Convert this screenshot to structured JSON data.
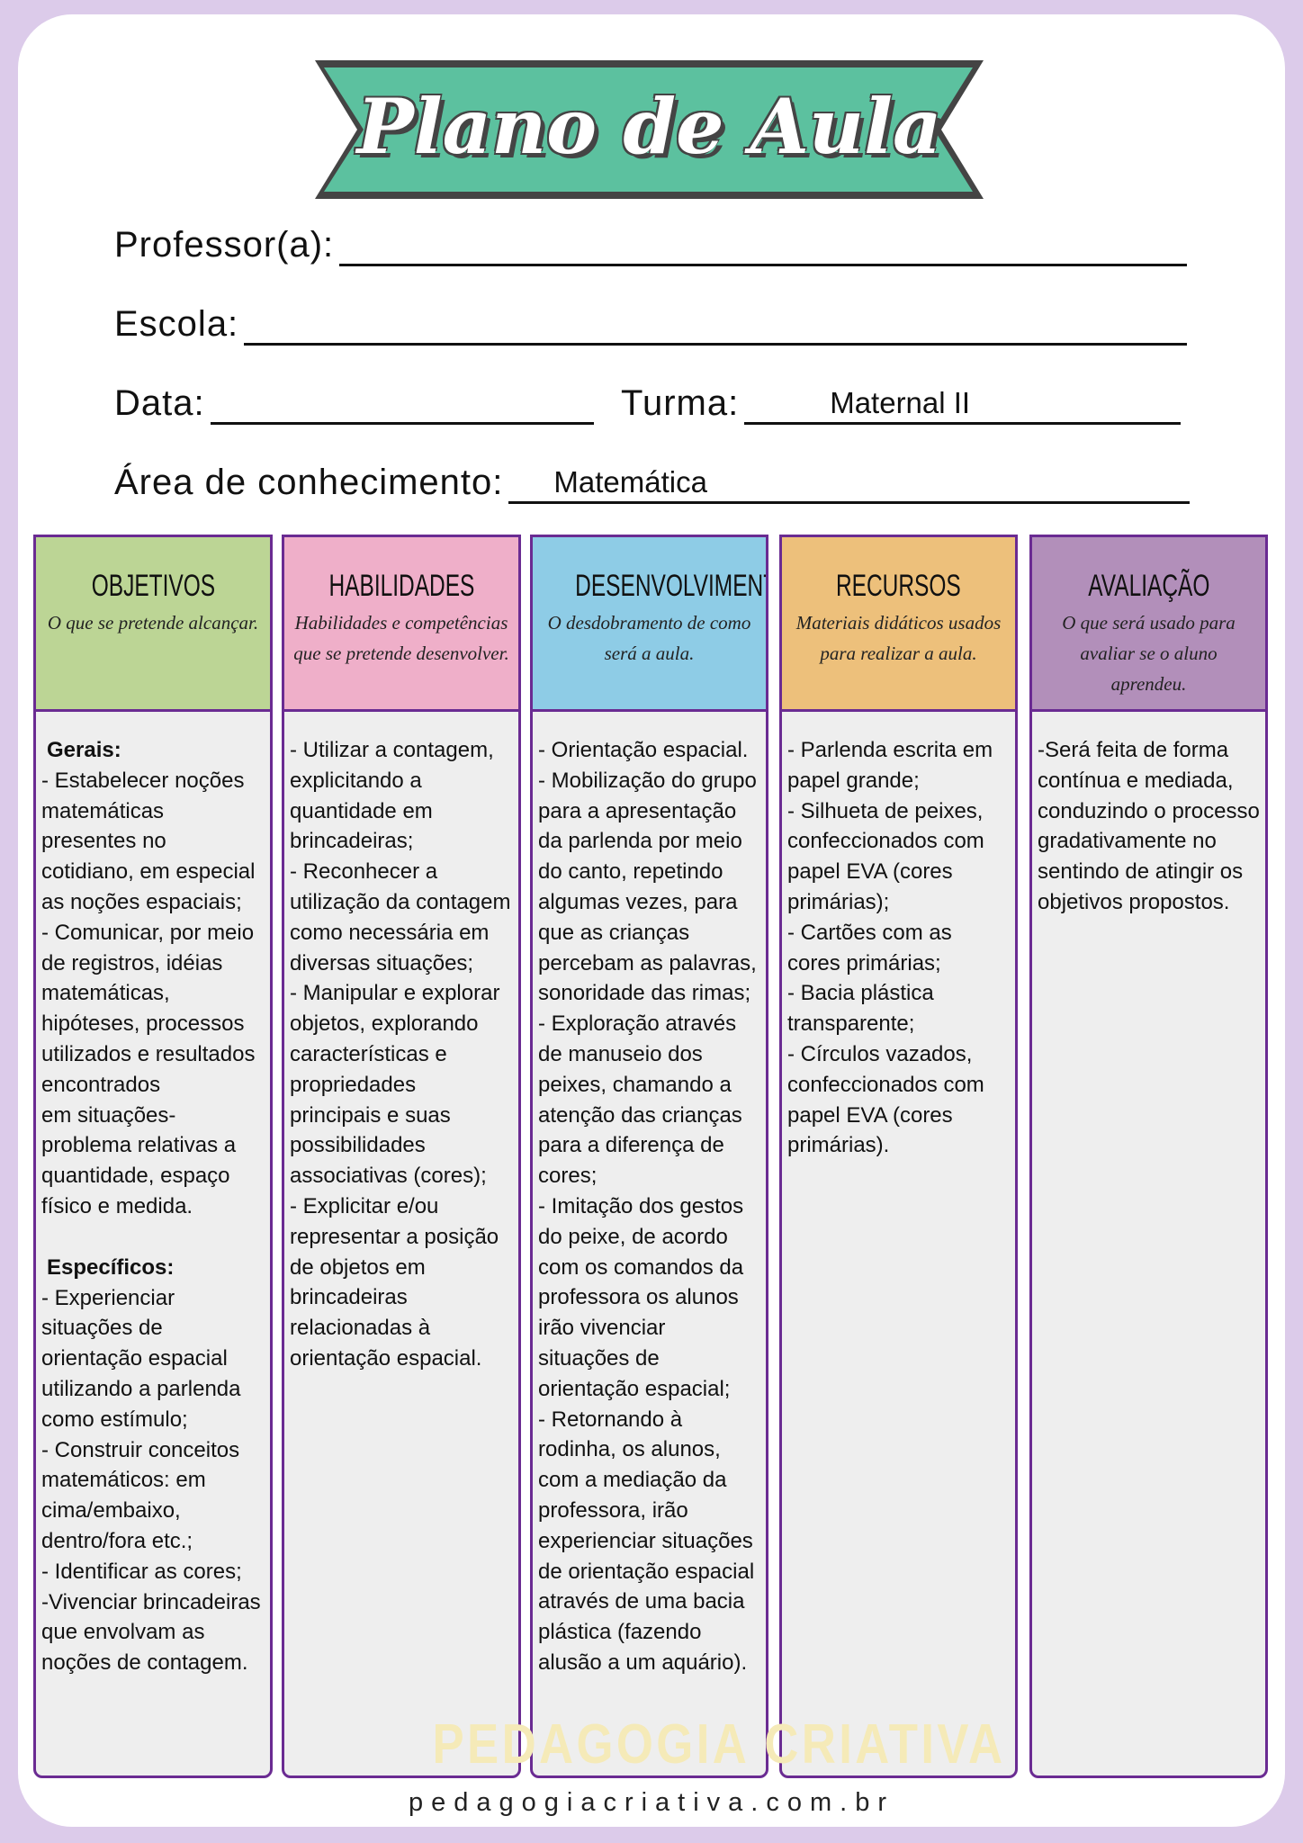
{
  "title": "Plano de Aula",
  "fields": {
    "professor_label": "Professor(a):",
    "professor_value": "",
    "escola_label": "Escola:",
    "escola_value": "",
    "data_label": "Data:",
    "data_value": "",
    "turma_label": "Turma:",
    "turma_value": "Maternal II",
    "area_label": "Área de conhecimento:",
    "area_value": "Matemática"
  },
  "columns": [
    {
      "title": "OBJETIVOS",
      "subtitle": "O que se pretende alcançar.",
      "color": "#bcd595",
      "heading1": "Gerais:",
      "text1": "- Estabelecer noções matemáticas presentes no cotidiano, em especial as noções espaciais;\n- Comunicar, por meio de registros, idéias matemáticas, hipóteses, processos utilizados e resultados encontrados\nem situações-problema relativas a quantidade, espaço físico e medida.",
      "heading2": "Específicos:",
      "text2": "- Experienciar situações de orientação espacial utilizando a parlenda como estímulo;\n- Construir conceitos matemáticos: em cima/embaixo, dentro/fora etc.;\n- Identificar as cores;\n-Vivenciar brincadeiras que envolvam as noções de contagem."
    },
    {
      "title": "HABILIDADES",
      "subtitle": "Habilidades e competências que se pretende desenvolver.",
      "color": "#efafc9",
      "text": "- Utilizar a contagem, explicitando a quantidade em brincadeiras;\n- Reconhecer a utilização da contagem como necessária em diversas situações;\n- Manipular e explorar objetos, explorando características e propriedades principais e suas possibilidades associativas (cores);\n- Explicitar e/ou representar a posição de objetos em brincadeiras relacionadas à orientação espacial."
    },
    {
      "title": "DESENVOLVIMENTO",
      "subtitle": "O desdobramento de como será a aula.",
      "color": "#8ecce6",
      "text": "- Orientação espacial.\n- Mobilização do grupo para a apresentação da parlenda por meio do canto, repetindo algumas vezes, para que as crianças percebam as palavras, sonoridade das rimas;\n- Exploração através de manuseio dos peixes, chamando a atenção das crianças para a diferença de cores;\n- Imitação dos gestos do peixe, de acordo com os comandos da professora os alunos irão vivenciar situações de orientação espacial;\n- Retornando à rodinha, os alunos, com a mediação da professora, irão experienciar situações de orientação espacial através de uma bacia plástica (fazendo alusão a um aquário)."
    },
    {
      "title": "RECURSOS",
      "subtitle": "Materiais didáticos usados para realizar a aula.",
      "color": "#edc07b",
      "text": "- Parlenda escrita em papel grande;\n- Silhueta de peixes, confeccionados com papel EVA (cores primárias);\n- Cartões com as cores primárias;\n- Bacia plástica transparente;\n- Círculos vazados, confeccionados com papel EVA (cores primárias)."
    },
    {
      "title": "AVALIAÇÃO",
      "subtitle": "O que será usado para avaliar se o aluno aprendeu.",
      "color": "#b28fba",
      "text": "-Será feita de forma contínua e mediada, conduzindo o processo gradativamente no sentindo de atingir os objetivos propostos."
    }
  ],
  "watermark": "PEDAGOGIA CRIATIVA",
  "footer": "pedagogiacriativa.com.br"
}
